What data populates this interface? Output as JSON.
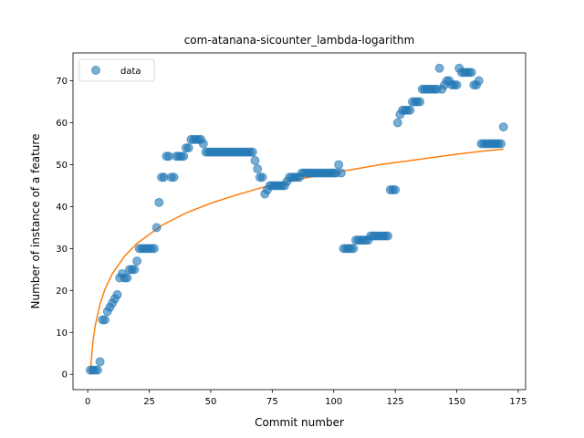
{
  "chart_data": {
    "type": "scatter",
    "title": "com-atanana-sicounter_lambda-logarithm",
    "xlabel": "Commit number",
    "ylabel": "Number of instance of a feature",
    "xlim": [
      -6,
      178
    ],
    "ylim": [
      -3.65,
      76.65
    ],
    "xticks": [
      0,
      25,
      50,
      75,
      100,
      125,
      150,
      175
    ],
    "yticks": [
      0,
      10,
      20,
      30,
      40,
      50,
      60,
      70
    ],
    "grid": false,
    "legend_position": "top-left",
    "colors": {
      "points": "#1f77b4",
      "fit": "#ff7f0e"
    },
    "series": [
      {
        "name": "data",
        "kind": "scatter",
        "x": [
          1,
          2,
          3,
          4,
          5,
          6,
          7,
          8,
          9,
          10,
          11,
          12,
          13,
          14,
          15,
          16,
          17,
          18,
          19,
          20,
          21,
          22,
          23,
          24,
          25,
          26,
          27,
          28,
          29,
          30,
          31,
          32,
          33,
          34,
          35,
          36,
          37,
          38,
          39,
          40,
          41,
          42,
          43,
          44,
          45,
          46,
          47,
          48,
          49,
          50,
          51,
          52,
          53,
          54,
          55,
          56,
          57,
          58,
          59,
          60,
          61,
          62,
          63,
          64,
          65,
          66,
          67,
          68,
          69,
          70,
          71,
          72,
          73,
          74,
          75,
          76,
          77,
          78,
          79,
          80,
          81,
          82,
          83,
          84,
          85,
          86,
          87,
          88,
          89,
          90,
          91,
          92,
          93,
          94,
          95,
          96,
          97,
          98,
          99,
          100,
          101,
          102,
          103,
          104,
          105,
          106,
          107,
          108,
          109,
          110,
          111,
          112,
          113,
          114,
          115,
          116,
          117,
          118,
          119,
          120,
          121,
          122,
          123,
          124,
          125,
          126,
          127,
          128,
          129,
          130,
          131,
          132,
          133,
          134,
          135,
          136,
          137,
          138,
          139,
          140,
          141,
          142,
          143,
          144,
          145,
          146,
          147,
          148,
          149,
          150,
          151,
          152,
          153,
          154,
          155,
          156,
          157,
          158,
          159,
          160,
          161,
          162,
          163,
          164,
          165,
          166,
          167,
          168,
          169
        ],
        "y": [
          1,
          1,
          1,
          1,
          3,
          13,
          13,
          15,
          16,
          17,
          18,
          19,
          23,
          24,
          23,
          23,
          25,
          25,
          25,
          27,
          30,
          30,
          30,
          30,
          30,
          30,
          30,
          35,
          41,
          47,
          47,
          52,
          52,
          47,
          47,
          52,
          52,
          52,
          52,
          54,
          54,
          56,
          56,
          56,
          56,
          56,
          55,
          53,
          53,
          53,
          53,
          53,
          53,
          53,
          53,
          53,
          53,
          53,
          53,
          53,
          53,
          53,
          53,
          53,
          53,
          53,
          53,
          51,
          49,
          47,
          47,
          43,
          44,
          45,
          45,
          45,
          45,
          45,
          45,
          45,
          46,
          47,
          47,
          47,
          47,
          47,
          48,
          48,
          48,
          48,
          48,
          48,
          48,
          48,
          48,
          48,
          48,
          48,
          48,
          48,
          48,
          50,
          48,
          30,
          30,
          30,
          30,
          30,
          32,
          32,
          32,
          32,
          32,
          32,
          33,
          33,
          33,
          33,
          33,
          33,
          33,
          33,
          44,
          44,
          44,
          60,
          62,
          63,
          63,
          63,
          63,
          65,
          65,
          65,
          65,
          68,
          68,
          68,
          68,
          68,
          68,
          68,
          73,
          68,
          69,
          70,
          70,
          69,
          69,
          69,
          73,
          72,
          72,
          72,
          72,
          72,
          69,
          69,
          70,
          55,
          55,
          55,
          55,
          55,
          55,
          55,
          55,
          55,
          59
        ]
      },
      {
        "kind": "line",
        "fit": "logarithmic",
        "x": [
          1,
          2,
          3,
          5,
          7,
          10,
          15,
          20,
          30,
          40,
          50,
          60,
          70,
          80,
          90,
          100,
          110,
          120,
          130,
          140,
          150,
          160,
          169
        ],
        "y": [
          0,
          7.3,
          11.5,
          16.8,
          20.3,
          24.0,
          28.2,
          31.2,
          35.5,
          38.5,
          40.8,
          42.7,
          44.4,
          45.8,
          47.0,
          48.1,
          49.1,
          50.1,
          50.9,
          51.7,
          52.5,
          53.2,
          53.7
        ]
      }
    ]
  }
}
